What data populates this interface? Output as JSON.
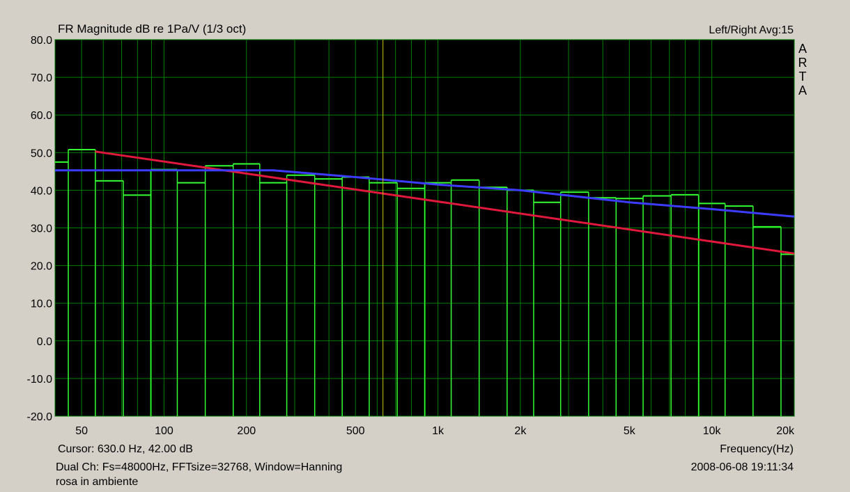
{
  "header": {
    "title": "FR Magnitude dB re 1Pa/V (1/3 oct)",
    "channel": "Left/Right  Avg:15",
    "brand": "ARTA"
  },
  "footer": {
    "cursor": "Cursor:   630.0 Hz, 42.00 dB",
    "xlabel": "Frequency(Hz)",
    "info": "Dual Ch: Fs=48000Hz, FFTsize=32768, Window=Hanning",
    "timestamp": "2008-06-08   19:11:34",
    "note": "rosa in ambiente"
  },
  "chart_data": {
    "type": "line",
    "x_scale": "log",
    "xlim": [
      40,
      20000
    ],
    "ylim": [
      -20,
      80
    ],
    "y_ticks": [
      80,
      70,
      60,
      50,
      40,
      30,
      20,
      10,
      0,
      -10,
      -20
    ],
    "y_tick_labels": [
      "80.0",
      "70.0",
      "60.0",
      "50.0",
      "40.0",
      "30.0",
      "20.0",
      "10.0",
      "0.0",
      "-10.0",
      "-20.0"
    ],
    "x_ticks": [
      50,
      100,
      200,
      500,
      1000,
      2000,
      5000,
      10000,
      20000
    ],
    "x_tick_labels": [
      "50",
      "100",
      "200",
      "500",
      "1k",
      "2k",
      "5k",
      "10k",
      "20k"
    ],
    "grid": true,
    "cursor_x": 630,
    "colors": {
      "background": "#000000",
      "grid": "#008000",
      "bars": "#33ff33",
      "cursor": "#c8c800",
      "red_line": "#e0183c",
      "blue_line": "#3c3cff"
    },
    "bars": {
      "centers": [
        40,
        50,
        63,
        80,
        100,
        125,
        160,
        200,
        250,
        315,
        400,
        500,
        630,
        800,
        1000,
        1250,
        1600,
        2000,
        2500,
        3150,
        4000,
        5000,
        6300,
        8000,
        10000,
        12500,
        16000,
        20000
      ],
      "values": [
        47.5,
        50.8,
        42.5,
        38.7,
        45.5,
        42.0,
        46.5,
        47.0,
        42.0,
        44.0,
        43.0,
        43.5,
        42.0,
        40.5,
        42.0,
        42.7,
        40.8,
        40.0,
        36.8,
        39.5,
        38.0,
        37.8,
        38.5,
        38.8,
        36.5,
        35.8,
        30.3,
        23.0
      ]
    },
    "series": [
      {
        "x": [
          56,
          20000
        ],
        "y": [
          50.3,
          23.2
        ]
      },
      {
        "x": [
          40,
          250,
          500,
          1000,
          2000,
          5000,
          10000,
          20000
        ],
        "y": [
          45.3,
          45.3,
          43.5,
          41.5,
          40.0,
          36.8,
          35.0,
          33.0
        ]
      }
    ]
  }
}
